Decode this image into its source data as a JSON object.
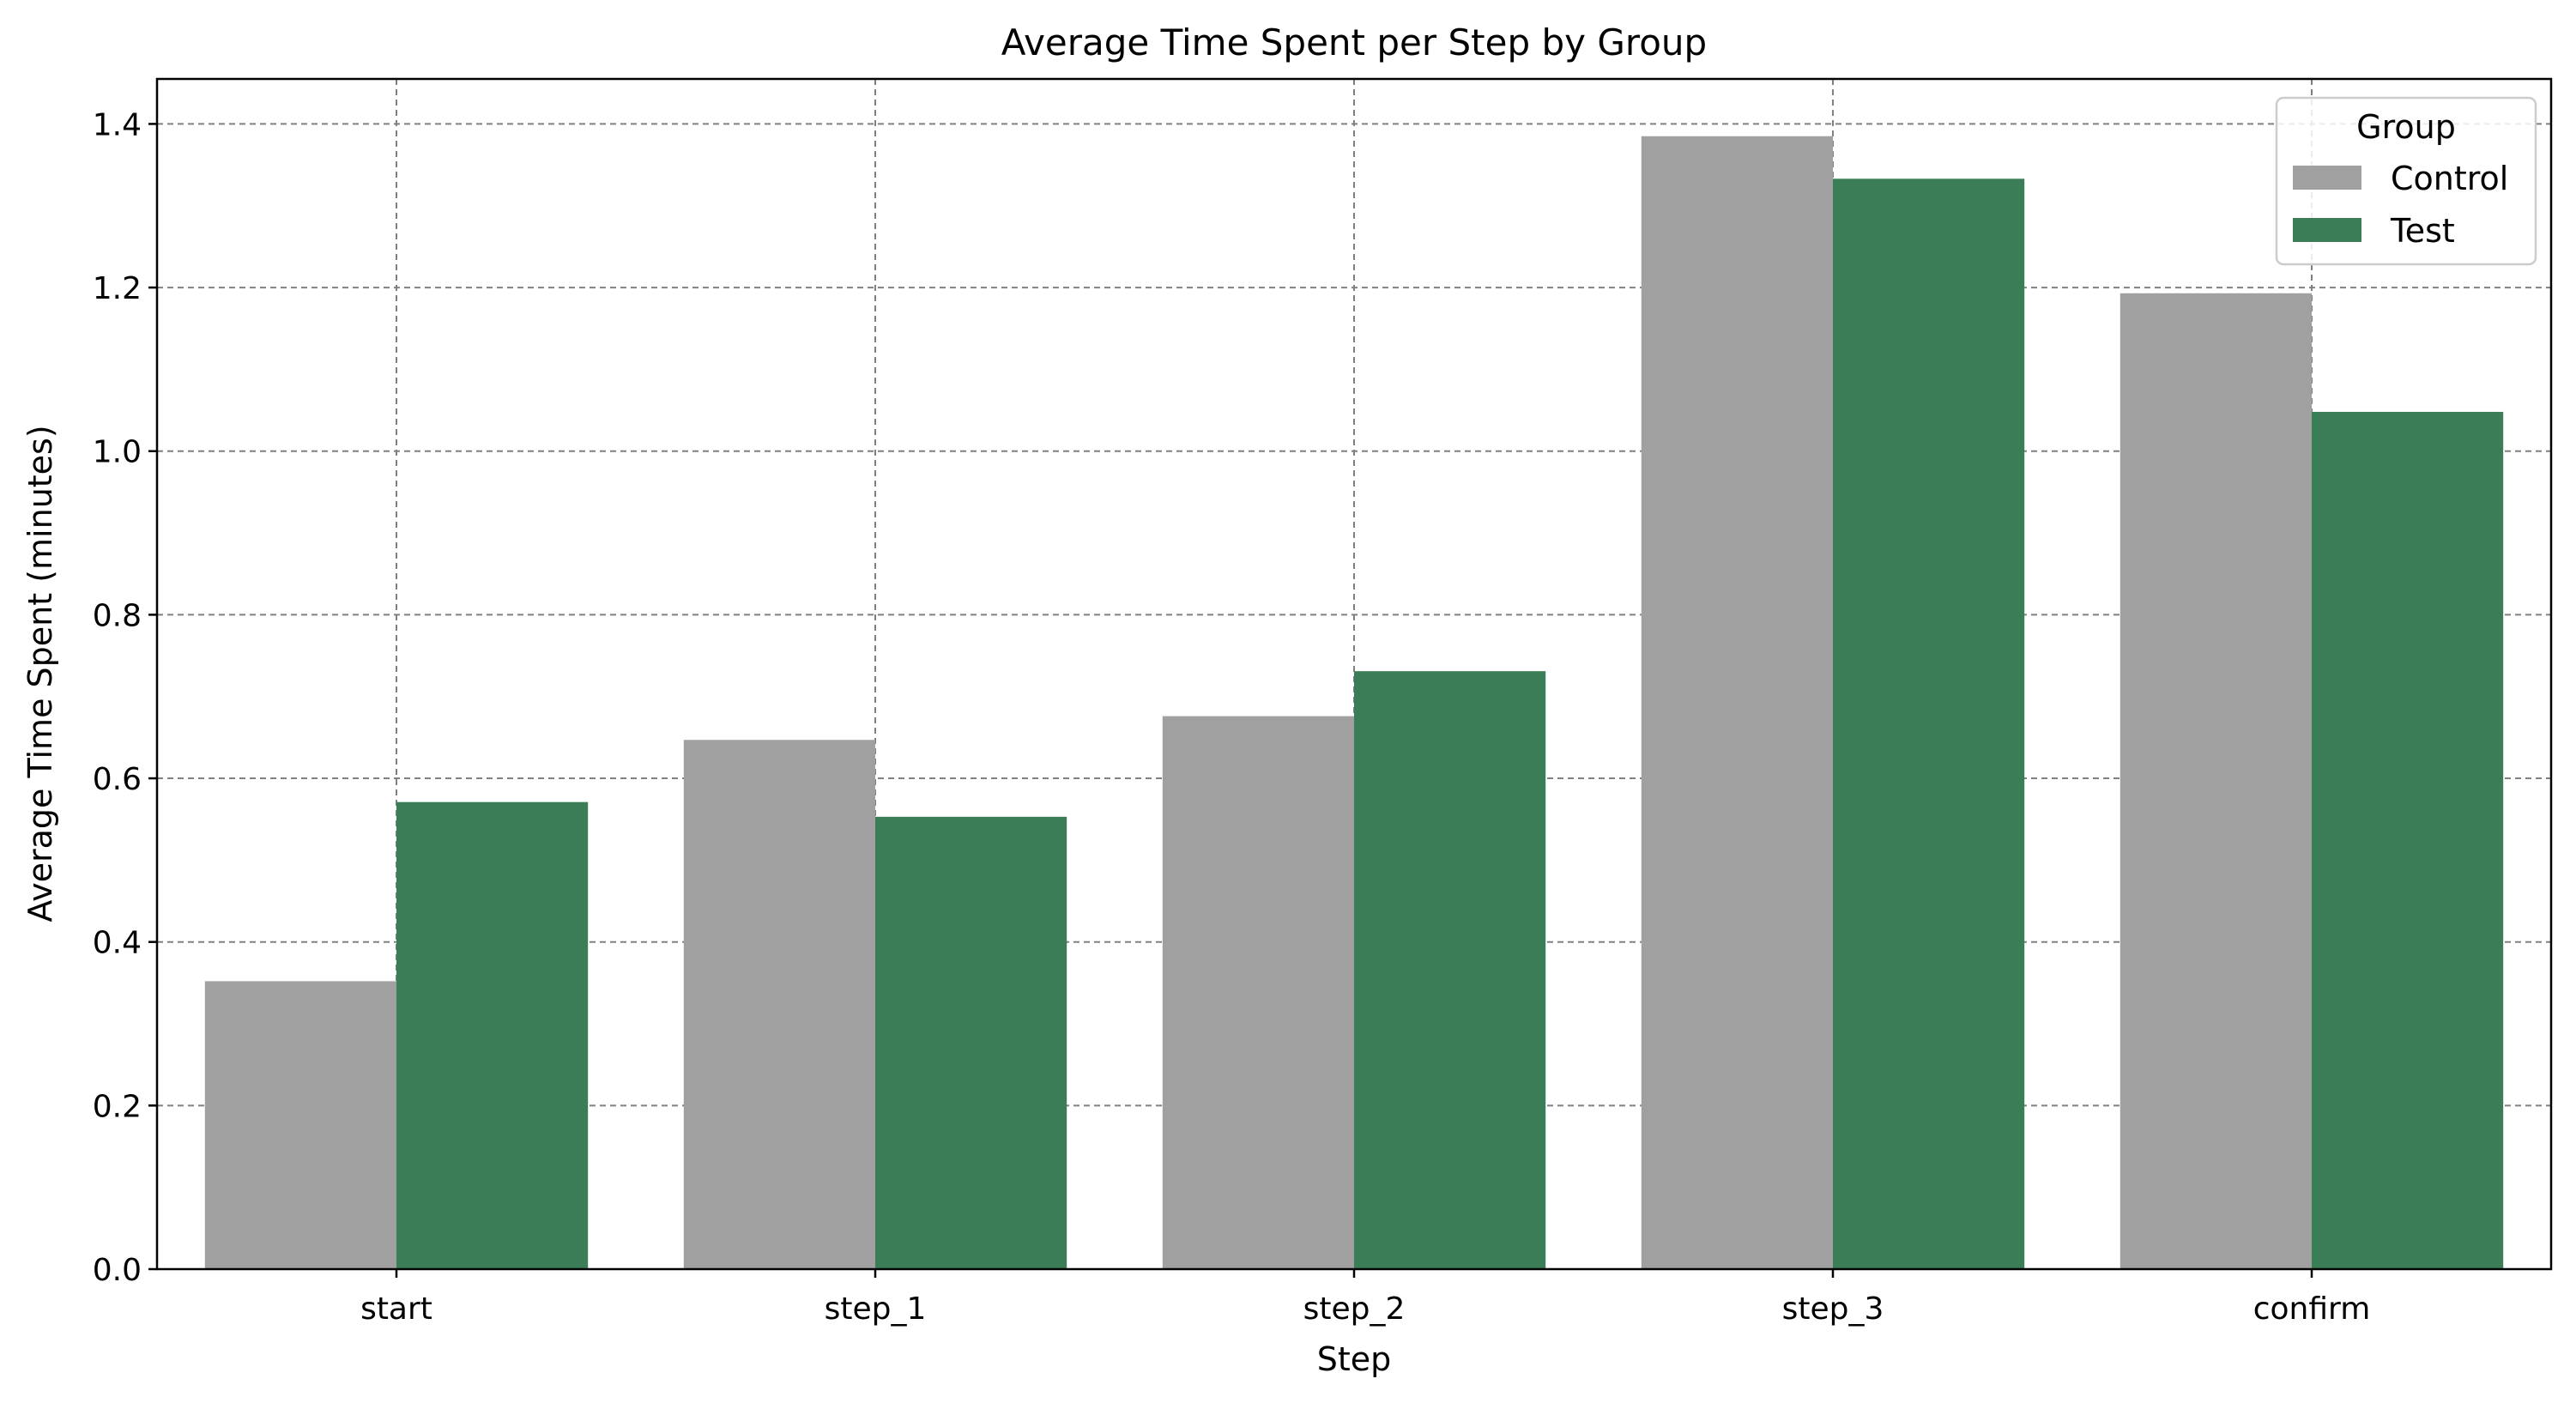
{
  "chart_data": {
    "type": "bar",
    "title": "Average Time Spent per Step by Group",
    "xlabel": "Step",
    "ylabel": "Average Time Spent (minutes)",
    "categories": [
      "start",
      "step_1",
      "step_2",
      "step_3",
      "confirm"
    ],
    "series": [
      {
        "name": "Control",
        "color": "#a0a0a0",
        "values": [
          0.352,
          0.647,
          0.676,
          1.385,
          1.193
        ]
      },
      {
        "name": "Test",
        "color": "#3b7d57",
        "values": [
          0.571,
          0.553,
          0.731,
          1.333,
          1.048
        ]
      }
    ],
    "ylim": [
      0,
      1.455
    ],
    "yticks": [
      "0.0",
      "0.2",
      "0.4",
      "0.6",
      "0.8",
      "1.0",
      "1.2",
      "1.4"
    ],
    "grid": true,
    "legend": {
      "title": "Group",
      "placement": "top-right"
    }
  }
}
